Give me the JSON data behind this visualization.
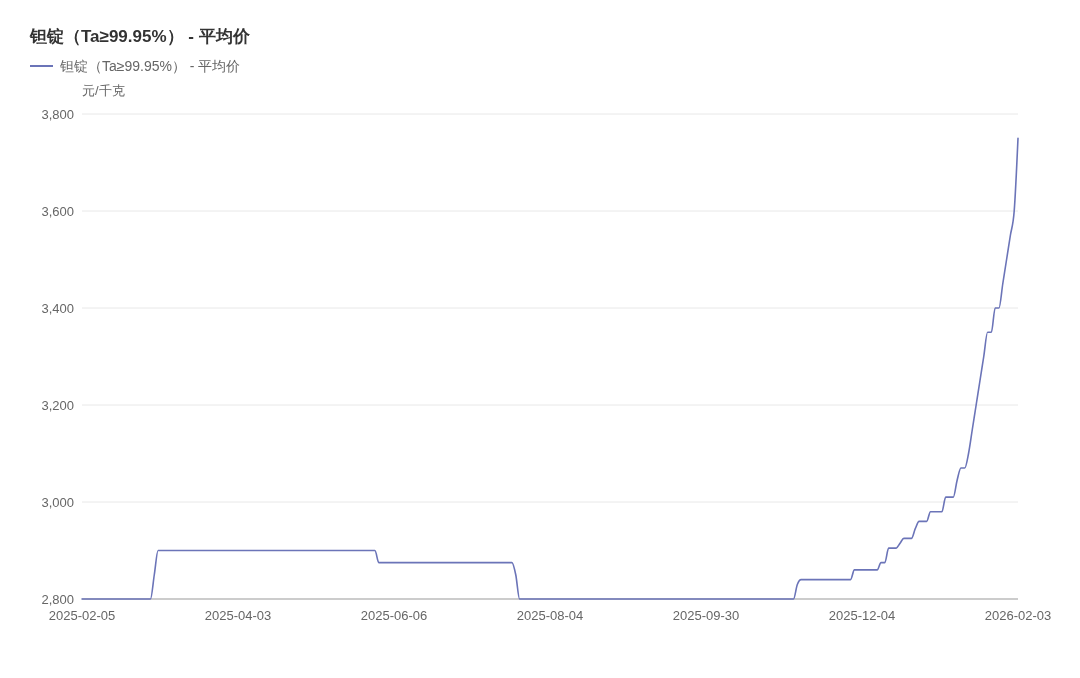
{
  "chart_data": {
    "type": "line",
    "title": "钽锭（Ta≥99.95%） - 平均价",
    "ylabel": "元/千克",
    "categories": [
      "2025-02-05",
      null,
      null,
      null,
      null,
      null,
      null,
      null,
      null,
      null,
      null,
      null,
      null,
      null,
      null,
      null,
      null,
      null,
      null,
      null,
      null,
      null,
      null,
      null,
      null,
      null,
      null,
      null,
      null,
      null,
      null,
      null,
      null,
      null,
      null,
      null,
      null,
      null,
      null,
      null,
      null,
      "2025-04-03",
      null,
      null,
      null,
      null,
      null,
      null,
      null,
      null,
      null,
      null,
      null,
      null,
      null,
      null,
      null,
      null,
      null,
      null,
      null,
      null,
      null,
      null,
      null,
      null,
      null,
      null,
      null,
      null,
      null,
      null,
      null,
      null,
      null,
      null,
      null,
      null,
      null,
      null,
      null,
      null,
      "2025-06-06",
      null,
      null,
      null,
      null,
      null,
      null,
      null,
      null,
      null,
      null,
      null,
      null,
      null,
      null,
      null,
      null,
      null,
      null,
      null,
      null,
      null,
      null,
      null,
      null,
      null,
      null,
      null,
      null,
      null,
      null,
      null,
      null,
      null,
      null,
      null,
      null,
      null,
      null,
      null,
      null,
      "2025-08-04",
      null,
      null,
      null,
      null,
      null,
      null,
      null,
      null,
      null,
      null,
      null,
      null,
      null,
      null,
      null,
      null,
      null,
      null,
      null,
      null,
      null,
      null,
      null,
      null,
      null,
      null,
      null,
      null,
      null,
      null,
      null,
      null,
      null,
      null,
      null,
      null,
      null,
      null,
      null,
      null,
      "2025-09-30",
      null,
      null,
      null,
      null,
      null,
      null,
      null,
      null,
      null,
      null,
      null,
      null,
      null,
      null,
      null,
      null,
      null,
      null,
      null,
      null,
      null,
      null,
      null,
      null,
      null,
      null,
      null,
      null,
      null,
      null,
      null,
      null,
      null,
      null,
      null,
      null,
      null,
      null,
      null,
      null,
      "2025-12-04",
      null,
      null,
      null,
      null,
      null,
      null,
      null,
      null,
      null,
      null,
      null,
      null,
      null,
      null,
      null,
      null,
      null,
      null,
      null,
      null,
      null,
      null,
      null,
      null,
      null,
      null,
      null,
      null,
      null,
      null,
      null,
      null,
      null,
      null,
      null,
      null,
      null,
      null,
      null,
      null,
      "2026-02-03"
    ],
    "series": [
      {
        "name": "钽锭（Ta≥99.95%） - 平均价",
        "color": "#6b74b8",
        "values": [
          2800,
          2800,
          2800,
          2800,
          2800,
          2800,
          2800,
          2800,
          2800,
          2800,
          2800,
          2800,
          2800,
          2800,
          2800,
          2800,
          2800,
          2800,
          2800,
          2850,
          2900,
          2900,
          2900,
          2900,
          2900,
          2900,
          2900,
          2900,
          2900,
          2900,
          2900,
          2900,
          2900,
          2900,
          2900,
          2900,
          2900,
          2900,
          2900,
          2900,
          2900,
          2900,
          2900,
          2900,
          2900,
          2900,
          2900,
          2900,
          2900,
          2900,
          2900,
          2900,
          2900,
          2900,
          2900,
          2900,
          2900,
          2900,
          2900,
          2900,
          2900,
          2900,
          2900,
          2900,
          2900,
          2900,
          2900,
          2900,
          2900,
          2900,
          2900,
          2900,
          2900,
          2900,
          2900,
          2900,
          2900,
          2900,
          2875,
          2875,
          2875,
          2875,
          2875,
          2875,
          2875,
          2875,
          2875,
          2875,
          2875,
          2875,
          2875,
          2875,
          2875,
          2875,
          2875,
          2875,
          2875,
          2875,
          2875,
          2875,
          2875,
          2875,
          2875,
          2875,
          2875,
          2875,
          2875,
          2875,
          2875,
          2875,
          2875,
          2875,
          2875,
          2875,
          2850,
          2800,
          2800,
          2800,
          2800,
          2800,
          2800,
          2800,
          2800,
          2800,
          2800,
          2800,
          2800,
          2800,
          2800,
          2800,
          2800,
          2800,
          2800,
          2800,
          2800,
          2800,
          2800,
          2800,
          2800,
          2800,
          2800,
          2800,
          2800,
          2800,
          2800,
          2800,
          2800,
          2800,
          2800,
          2800,
          2800,
          2800,
          2800,
          2800,
          2800,
          2800,
          2800,
          2800,
          2800,
          2800,
          2800,
          2800,
          2800,
          2800,
          2800,
          2800,
          2800,
          2800,
          2800,
          2800,
          2800,
          2800,
          2800,
          2800,
          2800,
          2800,
          2800,
          2800,
          2800,
          2800,
          2800,
          2800,
          2800,
          2800,
          2800,
          2800,
          2800,
          2800,
          2830,
          2840,
          2840,
          2840,
          2840,
          2840,
          2840,
          2840,
          2840,
          2840,
          2840,
          2840,
          2840,
          2840,
          2840,
          2860,
          2860,
          2860,
          2860,
          2860,
          2860,
          2860,
          2875,
          2875,
          2905,
          2905,
          2905,
          2915,
          2925,
          2925,
          2925,
          2945,
          2960,
          2960,
          2960,
          2980,
          2980,
          2980,
          2980,
          3010,
          3010,
          3010,
          3045,
          3070,
          3070,
          3100,
          3150,
          3200,
          3250,
          3300,
          3350,
          3350,
          3400,
          3400,
          3450,
          3500,
          3550,
          3600,
          3750
        ]
      }
    ],
    "ylim": [
      2800,
      3800
    ],
    "yticks": [
      {
        "value": 2800,
        "label": "2,800"
      },
      {
        "value": 3000,
        "label": "3,000"
      },
      {
        "value": 3200,
        "label": "3,200"
      },
      {
        "value": 3400,
        "label": "3,400"
      },
      {
        "value": 3600,
        "label": "3,600"
      },
      {
        "value": 3800,
        "label": "3,800"
      }
    ],
    "grid": "y",
    "legend": "top left",
    "marker": "none",
    "line_style": "solid"
  }
}
